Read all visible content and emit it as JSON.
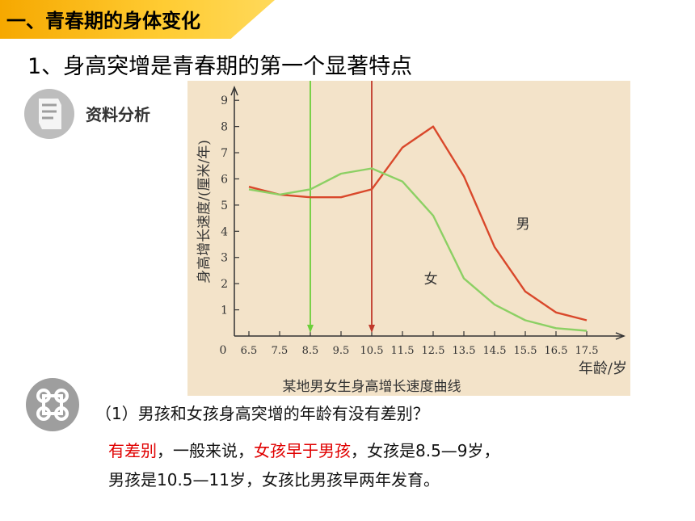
{
  "header": {
    "title": "一、青春期的身体变化"
  },
  "subtitle": "1、身高突增是青春期的第一个显著特点",
  "material_label": "资料分析",
  "question": "（1）男孩和女孩身高突增的年龄有没有差别？",
  "answer": {
    "line1": [
      {
        "text": "有差别",
        "red": true
      },
      {
        "text": "，一般来说，",
        "red": false
      },
      {
        "text": "女孩早于男孩",
        "red": true
      },
      {
        "text": "，女孩是8.5—9岁，",
        "red": false
      }
    ],
    "line2": "男孩是10.5—11岁，女孩比男孩早两年发育。"
  },
  "chart_data": {
    "type": "line",
    "title": "某地男女生身高增长速度曲线",
    "xlabel": "年龄/岁",
    "ylabel": "身高增长速度/(厘米/年)",
    "x_origin_label": "0",
    "x": [
      6.5,
      7.5,
      8.5,
      9.5,
      10.5,
      11.5,
      12.5,
      13.5,
      14.5,
      15.5,
      16.5,
      17.5
    ],
    "x_tick_labels": [
      "6.5",
      "7.5",
      "8.5",
      "9.5",
      "10.5",
      "11.5",
      "12.5",
      "13.5",
      "14.5",
      "15.5",
      "16.5",
      "17.5"
    ],
    "y_ticks": [
      1,
      2,
      3,
      4,
      5,
      6,
      7,
      8,
      9
    ],
    "ylim": [
      0,
      9.5
    ],
    "series": [
      {
        "name": "男",
        "color": "#d9482b",
        "values": [
          5.7,
          5.4,
          5.3,
          5.3,
          5.6,
          7.2,
          8.0,
          6.1,
          3.4,
          1.7,
          0.9,
          0.6
        ]
      },
      {
        "name": "女",
        "color": "#8cd064",
        "values": [
          5.6,
          5.4,
          5.6,
          6.2,
          6.4,
          5.9,
          4.6,
          2.2,
          1.2,
          0.6,
          0.3,
          0.2
        ]
      }
    ],
    "markers": [
      {
        "x": 8.5,
        "color": "#6ccf3a"
      },
      {
        "x": 10.5,
        "color": "#c0392b"
      }
    ]
  }
}
